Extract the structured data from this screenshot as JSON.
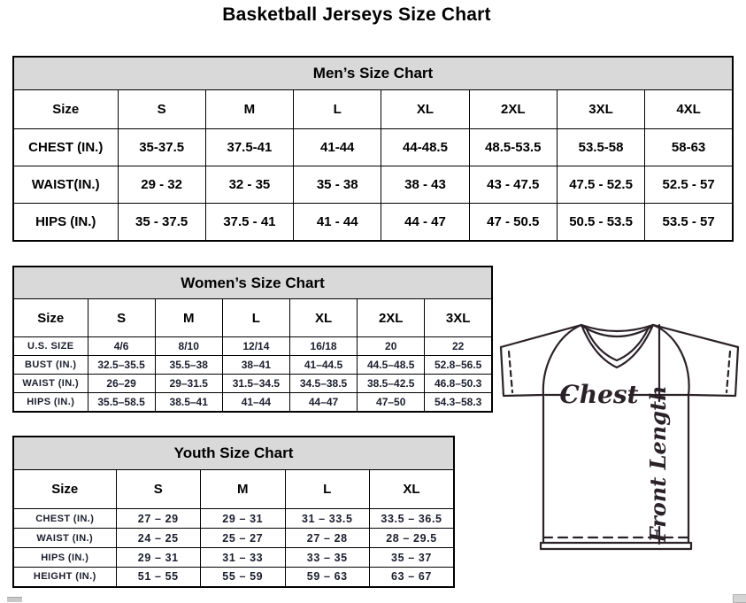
{
  "page_title": "Basketball Jerseys Size Chart",
  "tables": {
    "men": {
      "title": "Men’s Size Chart",
      "columns": [
        "Size",
        "S",
        "M",
        "L",
        "XL",
        "2XL",
        "3XL",
        "4XL"
      ],
      "rows": [
        {
          "label": "CHEST (IN.)",
          "values": [
            "35-37.5",
            "37.5-41",
            "41-44",
            "44-48.5",
            "48.5-53.5",
            "53.5-58",
            "58-63"
          ]
        },
        {
          "label": "WAIST(IN.)",
          "values": [
            "29 - 32",
            "32 - 35",
            "35 - 38",
            "38 - 43",
            "43 - 47.5",
            "47.5 - 52.5",
            "52.5 - 57"
          ]
        },
        {
          "label": "HIPS (IN.)",
          "values": [
            "35 - 37.5",
            "37.5 - 41",
            "41 - 44",
            "44 - 47",
            "47 - 50.5",
            "50.5 - 53.5",
            "53.5 - 57"
          ]
        }
      ]
    },
    "women": {
      "title": "Women’s Size Chart",
      "columns": [
        "Size",
        "S",
        "M",
        "L",
        "XL",
        "2XL",
        "3XL"
      ],
      "rows": [
        {
          "label": "U.S. SIZE",
          "values": [
            "4/6",
            "8/10",
            "12/14",
            "16/18",
            "20",
            "22"
          ]
        },
        {
          "label": "BUST (IN.)",
          "values": [
            "32.5–35.5",
            "35.5–38",
            "38–41",
            "41–44.5",
            "44.5–48.5",
            "52.8–56.5"
          ]
        },
        {
          "label": "WAIST (IN.)",
          "values": [
            "26–29",
            "29–31.5",
            "31.5–34.5",
            "34.5–38.5",
            "38.5–42.5",
            "46.8–50.3"
          ]
        },
        {
          "label": "HIPS (IN.)",
          "values": [
            "35.5–58.5",
            "38.5–41",
            "41–44",
            "44–47",
            "47–50",
            "54.3–58.3"
          ]
        }
      ]
    },
    "youth": {
      "title": "Youth Size Chart",
      "columns": [
        "Size",
        "S",
        "M",
        "L",
        "XL"
      ],
      "rows": [
        {
          "label": "CHEST (IN.)",
          "values": [
            "27 – 29",
            "29 – 31",
            "31 – 33.5",
            "33.5 – 36.5"
          ]
        },
        {
          "label": "WAIST (IN.)",
          "values": [
            "24 – 25",
            "25 – 27",
            "27 – 28",
            "28 – 29.5"
          ]
        },
        {
          "label": "HIPS (IN.)",
          "values": [
            "29 – 31",
            "31 – 33",
            "33 – 35",
            "35 – 37"
          ]
        },
        {
          "label": "HEIGHT (IN.)",
          "values": [
            "51 – 55",
            "55 – 59",
            "59 – 63",
            "63 – 67"
          ]
        }
      ]
    }
  },
  "diagram": {
    "chest_label": "Chest",
    "front_length_label": "Front Length"
  },
  "colors": {
    "band_background": "#d9d9d9",
    "table_border": "#000000",
    "detail_text": "#1c1e2e",
    "diagram_line": "#2b2228"
  }
}
